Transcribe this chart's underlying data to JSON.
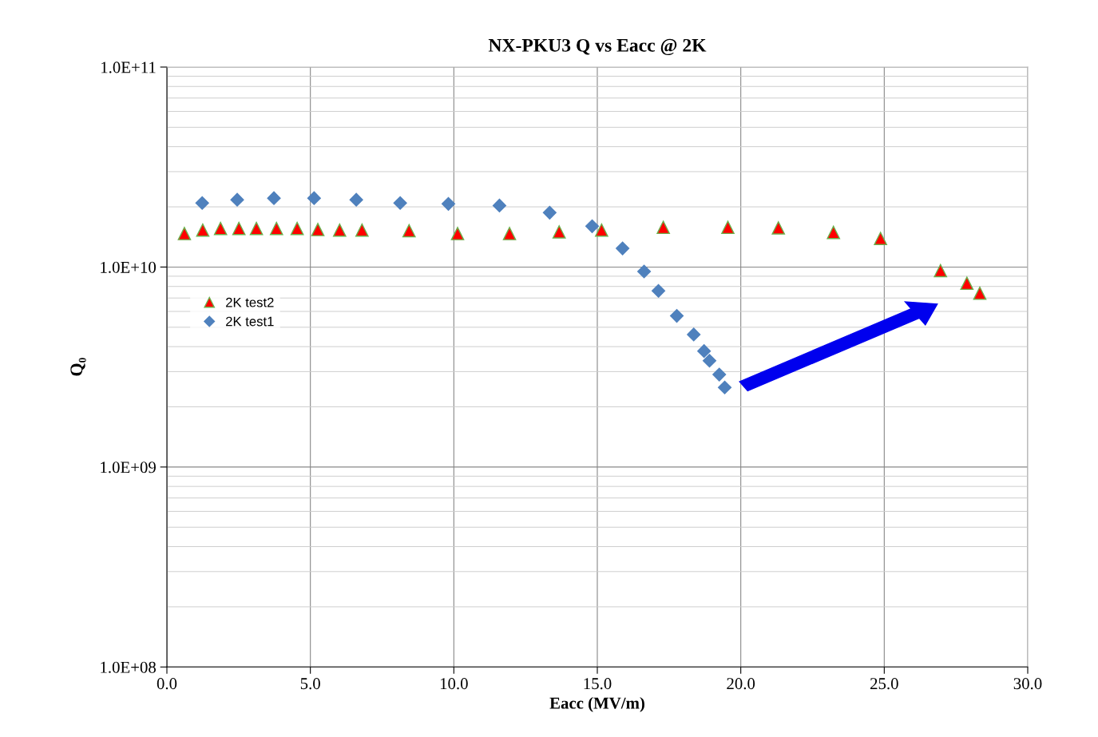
{
  "chart_data": {
    "type": "scatter",
    "title": "NX-PKU3 Q vs Eacc @ 2K",
    "xlabel": "Eacc (MV/m)",
    "ylabel": "Q₀",
    "log": "y",
    "grid": true,
    "legend": "center left",
    "xlim": [
      0,
      30
    ],
    "xticks": [
      {
        "value": 0,
        "label": "0.0"
      },
      {
        "value": 5,
        "label": "5.0"
      },
      {
        "value": 10,
        "label": "10.0"
      },
      {
        "value": 15,
        "label": "15.0"
      },
      {
        "value": 20,
        "label": "20.0"
      },
      {
        "value": 25,
        "label": "25.0"
      },
      {
        "value": 30,
        "label": "30.0"
      }
    ],
    "ylim": [
      100000000.0,
      100000000000.0
    ],
    "yticks": [
      {
        "value": 100000000.0,
        "label": "1.0E+08"
      },
      {
        "value": 1000000000.0,
        "label": "1.0E+09"
      },
      {
        "value": 10000000000.0,
        "label": "1.0E+10"
      },
      {
        "value": 100000000000.0,
        "label": "1.0E+11"
      }
    ],
    "series": [
      {
        "name": "2K test2",
        "color": "#ff0000",
        "marker": "triangle",
        "x": [
          0.61,
          1.25,
          1.87,
          2.51,
          3.12,
          3.82,
          4.54,
          5.26,
          6.02,
          6.8,
          8.44,
          10.13,
          11.94,
          13.67,
          15.15,
          17.3,
          19.55,
          21.31,
          23.23,
          24.87,
          26.96,
          27.88,
          28.33
        ],
        "values": [
          14700000000.0,
          15300000000.0,
          15600000000.0,
          15600000000.0,
          15600000000.0,
          15600000000.0,
          15600000000.0,
          15400000000.0,
          15300000000.0,
          15300000000.0,
          15200000000.0,
          14700000000.0,
          14700000000.0,
          15000000000.0,
          15300000000.0,
          15800000000.0,
          15800000000.0,
          15700000000.0,
          14900000000.0,
          13900000000.0,
          9600000000.0,
          8300000000.0,
          7400000000.0
        ]
      },
      {
        "name": "2K test1",
        "color": "#4f81bd",
        "marker": "diamond",
        "x": [
          1.23,
          2.45,
          3.73,
          5.13,
          6.6,
          8.13,
          9.81,
          11.59,
          13.34,
          14.82,
          15.88,
          16.63,
          17.13,
          17.77,
          18.36,
          18.72,
          18.91,
          19.25,
          19.44
        ],
        "values": [
          20900000000.0,
          21700000000.0,
          22100000000.0,
          22100000000.0,
          21700000000.0,
          20900000000.0,
          20700000000.0,
          20300000000.0,
          18700000000.0,
          16000000000.0,
          12400000000.0,
          9500000000.0,
          7600000000.0,
          5700000000.0,
          4600000000.0,
          3800000000.0,
          3400000000.0,
          2900000000.0,
          2500000000.0
        ]
      }
    ]
  }
}
